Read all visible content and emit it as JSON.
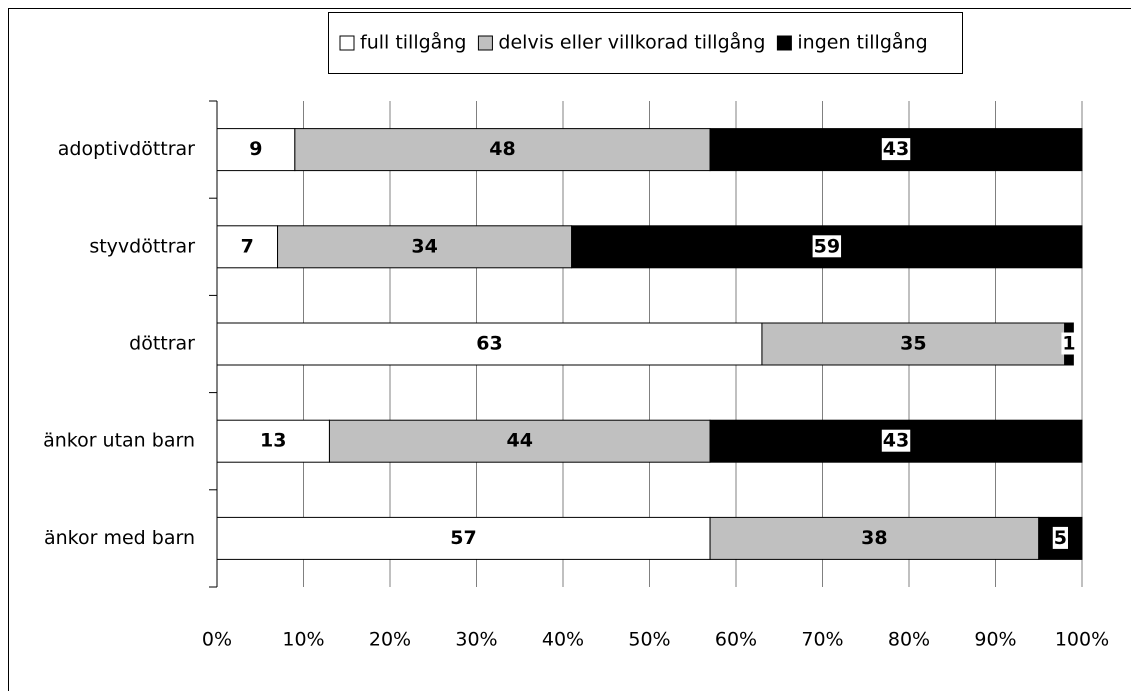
{
  "chart_data": {
    "type": "stacked_barh",
    "categories": [
      "adoptivdöttrar",
      "styvdöttrar",
      "döttrar",
      "änkor utan barn",
      "änkor med barn"
    ],
    "series": [
      {
        "name": "full tillgång",
        "color": "#ffffff",
        "values": [
          9,
          7,
          63,
          13,
          57
        ]
      },
      {
        "name": "delvis eller villkorad tillgång",
        "color": "#c0c0c0",
        "values": [
          48,
          34,
          35,
          44,
          38
        ]
      },
      {
        "name": "ingen tillgång",
        "color": "#000000",
        "values": [
          43,
          59,
          1,
          43,
          5
        ]
      }
    ],
    "xlim": [
      0,
      100
    ],
    "xticks": [
      {
        "value": 0,
        "label": "0%"
      },
      {
        "value": 10,
        "label": "10%"
      },
      {
        "value": 20,
        "label": "20%"
      },
      {
        "value": 30,
        "label": "30%"
      },
      {
        "value": 40,
        "label": "40%"
      },
      {
        "value": 50,
        "label": "50%"
      },
      {
        "value": 60,
        "label": "60%"
      },
      {
        "value": 70,
        "label": "70%"
      },
      {
        "value": 80,
        "label": "80%"
      },
      {
        "value": 90,
        "label": "90%"
      },
      {
        "value": 100,
        "label": "100%"
      }
    ],
    "grid": true,
    "legend": "top"
  }
}
